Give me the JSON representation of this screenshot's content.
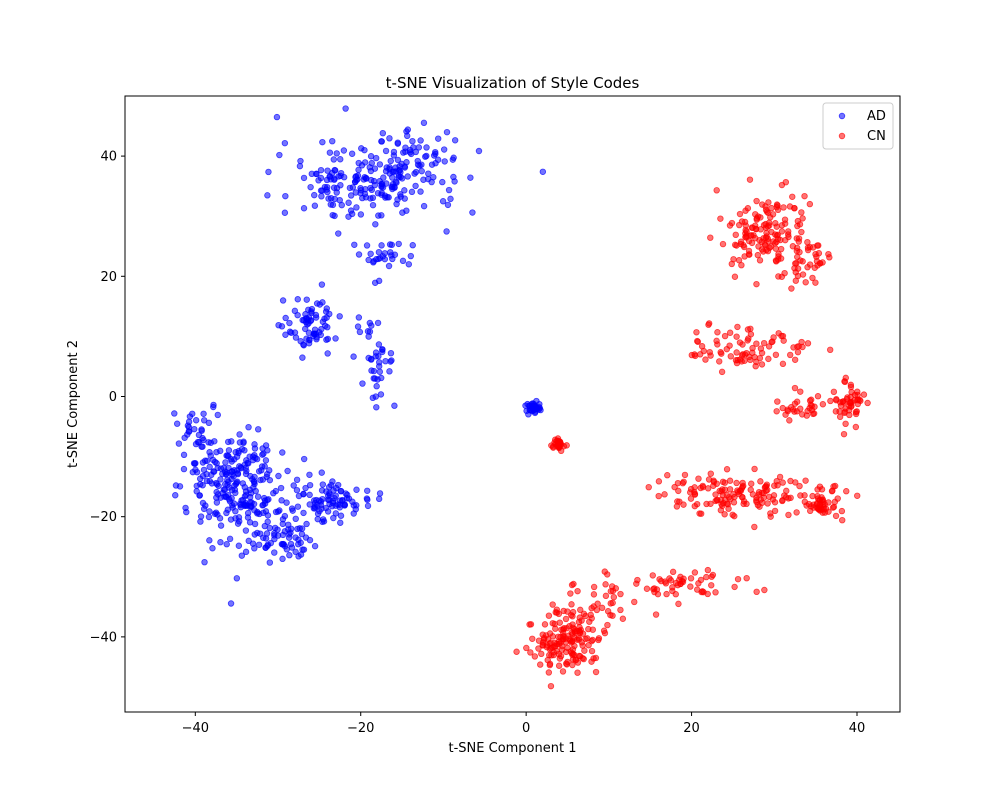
{
  "chart_data": {
    "type": "scatter",
    "title": "t-SNE Visualization of Style Codes",
    "xlabel": "t-SNE Component 1",
    "ylabel": "t-SNE Component 2",
    "xlim": [
      -48.5,
      45.2
    ],
    "ylim": [
      -52.5,
      50
    ],
    "xticks": [
      -40,
      -20,
      0,
      20,
      40
    ],
    "yticks": [
      -40,
      -20,
      0,
      20,
      40
    ],
    "xtick_labels": [
      "−40",
      "−20",
      "0",
      "20",
      "40"
    ],
    "ytick_labels": [
      "−40",
      "−20",
      "0",
      "20",
      "40"
    ],
    "grid": false,
    "legend_position": "top-right",
    "series": [
      {
        "name": "AD",
        "color": "#0000ff",
        "alpha": 0.55,
        "clusters": [
          {
            "center": [
              -19,
              36
            ],
            "spread": [
              9,
              6
            ],
            "count": 200
          },
          {
            "center": [
              -13,
              40
            ],
            "spread": [
              4,
              3
            ],
            "count": 40
          },
          {
            "center": [
              -17,
              23
            ],
            "spread": [
              3,
              3
            ],
            "count": 30
          },
          {
            "center": [
              -26,
              12
            ],
            "spread": [
              3,
              3.5
            ],
            "count": 70
          },
          {
            "center": [
              -18,
              5
            ],
            "spread": [
              2,
              6
            ],
            "count": 40
          },
          {
            "center": [
              -35,
              -15
            ],
            "spread": [
              5,
              8
            ],
            "count": 250
          },
          {
            "center": [
              -24,
              -17
            ],
            "spread": [
              4,
              3
            ],
            "count": 90
          },
          {
            "center": [
              -30,
              -24
            ],
            "spread": [
              3,
              3
            ],
            "count": 60
          },
          {
            "center": [
              -40,
              -5
            ],
            "spread": [
              2,
              3
            ],
            "count": 30
          },
          {
            "center": [
              1,
              -2
            ],
            "spread": [
              0.8,
              0.8
            ],
            "count": 40
          }
        ]
      },
      {
        "name": "CN",
        "color": "#ff0000",
        "alpha": 0.55,
        "clusters": [
          {
            "center": [
              29,
              27
            ],
            "spread": [
              5,
              5
            ],
            "count": 150
          },
          {
            "center": [
              34,
              22
            ],
            "spread": [
              2,
              3
            ],
            "count": 30
          },
          {
            "center": [
              27,
              8
            ],
            "spread": [
              6,
              3
            ],
            "count": 80
          },
          {
            "center": [
              39,
              -1
            ],
            "spread": [
              1.5,
              3
            ],
            "count": 50
          },
          {
            "center": [
              33,
              -2
            ],
            "spread": [
              2.5,
              2
            ],
            "count": 30
          },
          {
            "center": [
              26,
              -16
            ],
            "spread": [
              8,
              3
            ],
            "count": 150
          },
          {
            "center": [
              36,
              -18
            ],
            "spread": [
              2,
              2
            ],
            "count": 40
          },
          {
            "center": [
              5,
              -41
            ],
            "spread": [
              4,
              4
            ],
            "count": 150
          },
          {
            "center": [
              9,
              -34
            ],
            "spread": [
              4,
              3
            ],
            "count": 40
          },
          {
            "center": [
              20,
              -31
            ],
            "spread": [
              5,
              2
            ],
            "count": 50
          },
          {
            "center": [
              4,
              -8
            ],
            "spread": [
              0.8,
              0.8
            ],
            "count": 30
          }
        ]
      }
    ]
  }
}
